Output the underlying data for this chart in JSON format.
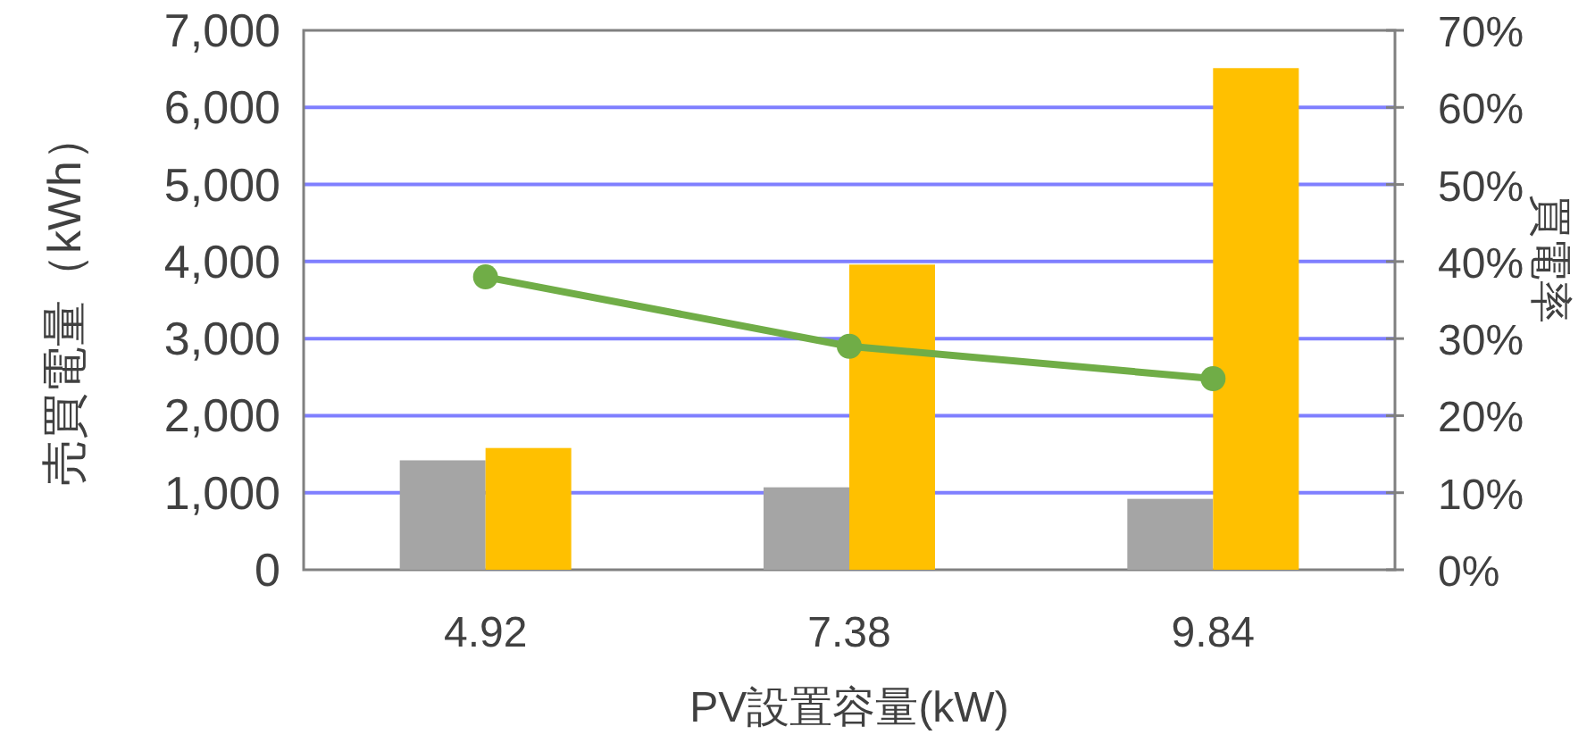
{
  "chart_data": {
    "type": "bar",
    "xlabel": "PV設置容量(kW)",
    "ylabel": "売買電量（kWh）",
    "y2label": "買電率",
    "categories": [
      "4.92",
      "7.38",
      "9.84"
    ],
    "series": [
      {
        "color": "#a5a5a5",
        "values": [
          1420,
          1070,
          920
        ]
      },
      {
        "color": "#ffc000",
        "values": [
          1580,
          3960,
          6510
        ]
      },
      {
        "type": "line",
        "axis": "y2",
        "color": "#70ad47",
        "marker": "circle",
        "values": [
          38,
          29,
          24.8
        ]
      }
    ],
    "ylim": [
      0,
      7000
    ],
    "yticks": [
      0,
      {
        "value": 1000,
        "label": "1,000"
      },
      {
        "value": 2000,
        "label": "2,000"
      },
      {
        "value": 3000,
        "label": "3,000"
      },
      {
        "value": 4000,
        "label": "4,000"
      },
      {
        "value": 5000,
        "label": "5,000"
      },
      {
        "value": 6000,
        "label": "6,000"
      },
      {
        "value": 7000,
        "label": "7,000"
      }
    ],
    "y2lim": [
      0,
      70
    ],
    "y2ticks": [
      {
        "value": 0,
        "label": "0%"
      },
      {
        "value": 10,
        "label": "10%"
      },
      {
        "value": 20,
        "label": "20%"
      },
      {
        "value": 30,
        "label": "30%"
      },
      {
        "value": 40,
        "label": "40%"
      },
      {
        "value": 50,
        "label": "50%"
      },
      {
        "value": 60,
        "label": "60%"
      },
      {
        "value": 70,
        "label": "70%"
      }
    ],
    "grid": "y"
  }
}
